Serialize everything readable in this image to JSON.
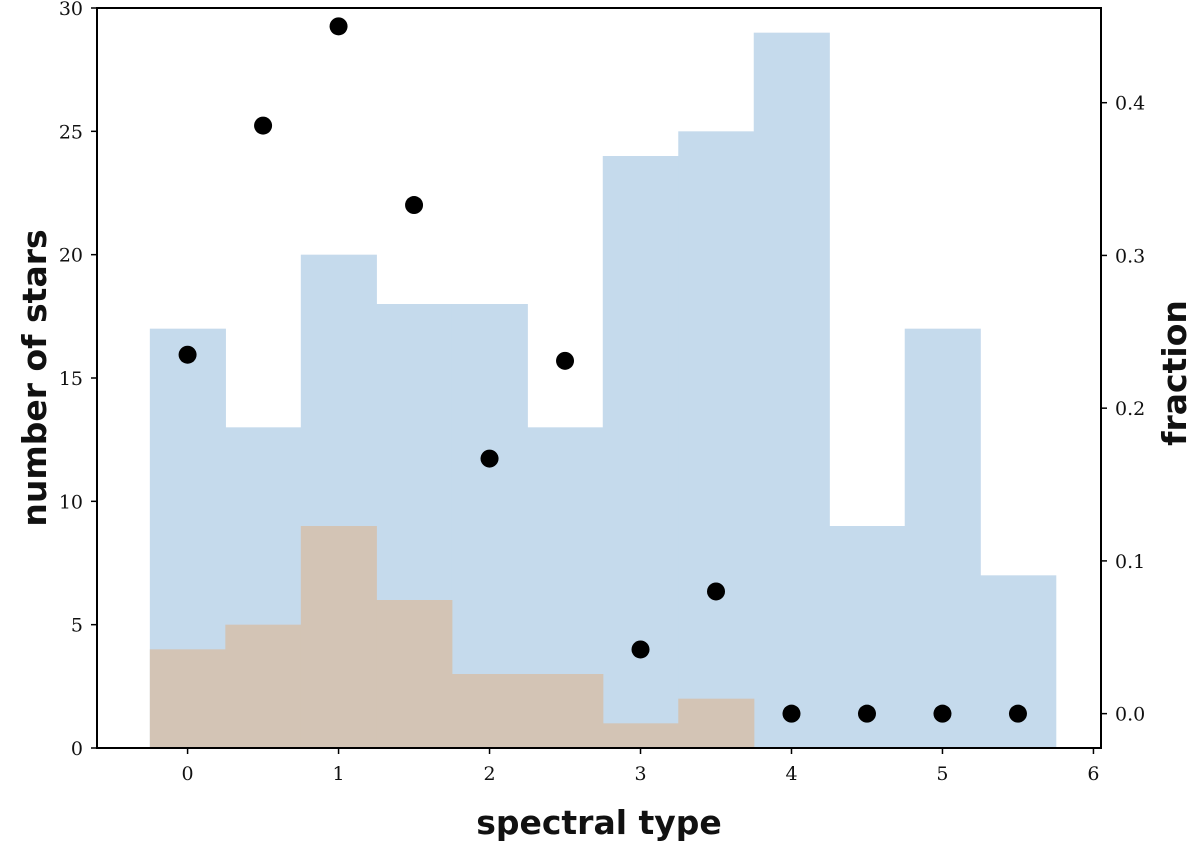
{
  "chart_data": {
    "type": "bar",
    "xlabel": "spectral type",
    "ylabel": "number of stars",
    "y2label": "fraction",
    "xlim": [
      -0.6,
      6.05
    ],
    "ylim": [
      0,
      30
    ],
    "y2lim": [
      -0.0225,
      0.462
    ],
    "xticks": [
      0,
      1,
      2,
      3,
      4,
      5,
      6
    ],
    "yticks": [
      0,
      5,
      10,
      15,
      20,
      25,
      30
    ],
    "y2ticks": [
      0.0,
      0.1,
      0.2,
      0.3,
      0.4
    ],
    "bin_width": 0.5,
    "grid": false,
    "series": [
      {
        "kind": "histogram",
        "color": "#c5daec",
        "x": [
          0,
          0.5,
          1,
          1.5,
          2,
          2.5,
          3,
          3.5,
          4,
          4.5,
          5,
          5.5
        ],
        "values": [
          17,
          13,
          20,
          18,
          18,
          13,
          24,
          25,
          29,
          9,
          17,
          7
        ]
      },
      {
        "kind": "histogram",
        "color": "#d3c4b5",
        "x": [
          0,
          0.5,
          1,
          1.5,
          2,
          2.5,
          3,
          3.5
        ],
        "values": [
          4,
          5,
          9,
          6,
          3,
          3,
          1,
          2
        ]
      },
      {
        "kind": "scatter",
        "axis": "right",
        "color": "#000000",
        "x": [
          0,
          0.5,
          1,
          1.5,
          2,
          2.5,
          3,
          3.5,
          4,
          4.5,
          5,
          5.5
        ],
        "values": [
          0.235,
          0.385,
          0.45,
          0.333,
          0.167,
          0.231,
          0.042,
          0.08,
          0.0,
          0.0,
          0.0,
          0.0
        ]
      }
    ]
  }
}
